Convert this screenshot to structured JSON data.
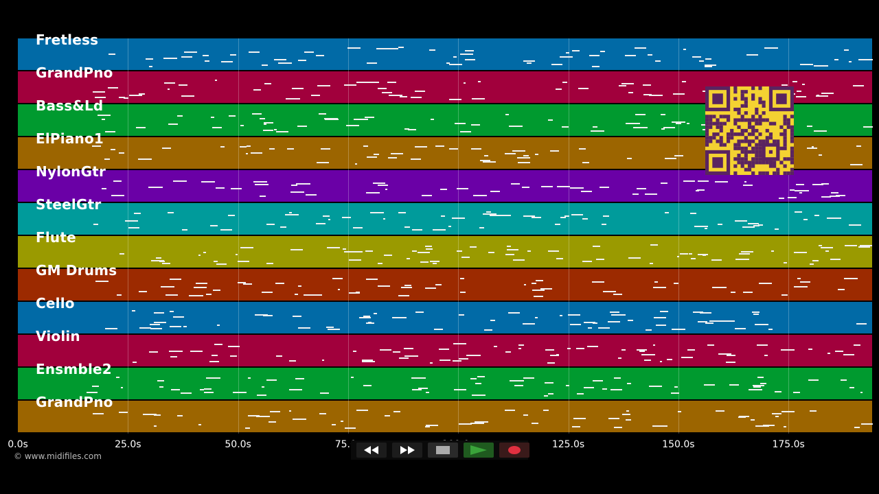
{
  "tracks": [
    {
      "label": "Fretless",
      "color": "#016aa6"
    },
    {
      "label": "GrandPno",
      "color": "#a1003c"
    },
    {
      "label": "Bass&Ld",
      "color": "#009a2f"
    },
    {
      "label": "ElPiano1",
      "color": "#9c6500"
    },
    {
      "label": "NylonGtr",
      "color": "#6a00a6"
    },
    {
      "label": "SteelGtr",
      "color": "#009b9b"
    },
    {
      "label": "Flute",
      "color": "#9a9a00"
    },
    {
      "label": "GM Drums",
      "color": "#9c2a00"
    },
    {
      "label": "Cello",
      "color": "#016aa6"
    },
    {
      "label": "Violin",
      "color": "#a1003c"
    },
    {
      "label": "Ensmble2",
      "color": "#009a2f"
    },
    {
      "label": "GrandPno",
      "color": "#9c6500"
    }
  ],
  "timeline": {
    "tick_labels": [
      "0.0s",
      "25.0s",
      "50.0s",
      "75.0s",
      "100.0s",
      "125.0s",
      "150.0s",
      "175.0s"
    ],
    "tick_values": [
      0,
      25,
      50,
      75,
      100,
      125,
      150,
      175
    ],
    "max_seconds": 194
  },
  "copyright": "© www.midifiles.com",
  "transport": {
    "rewind_icon": "rewind-icon",
    "fast_forward_icon": "fast-forward-icon",
    "stop_icon": "stop-icon",
    "play_icon": "play-icon",
    "record_icon": "record-icon",
    "play_color": "#3aa43a",
    "record_color": "#e03040"
  },
  "qr": {
    "fg": "#5a2460",
    "bg": "#f4d232"
  }
}
